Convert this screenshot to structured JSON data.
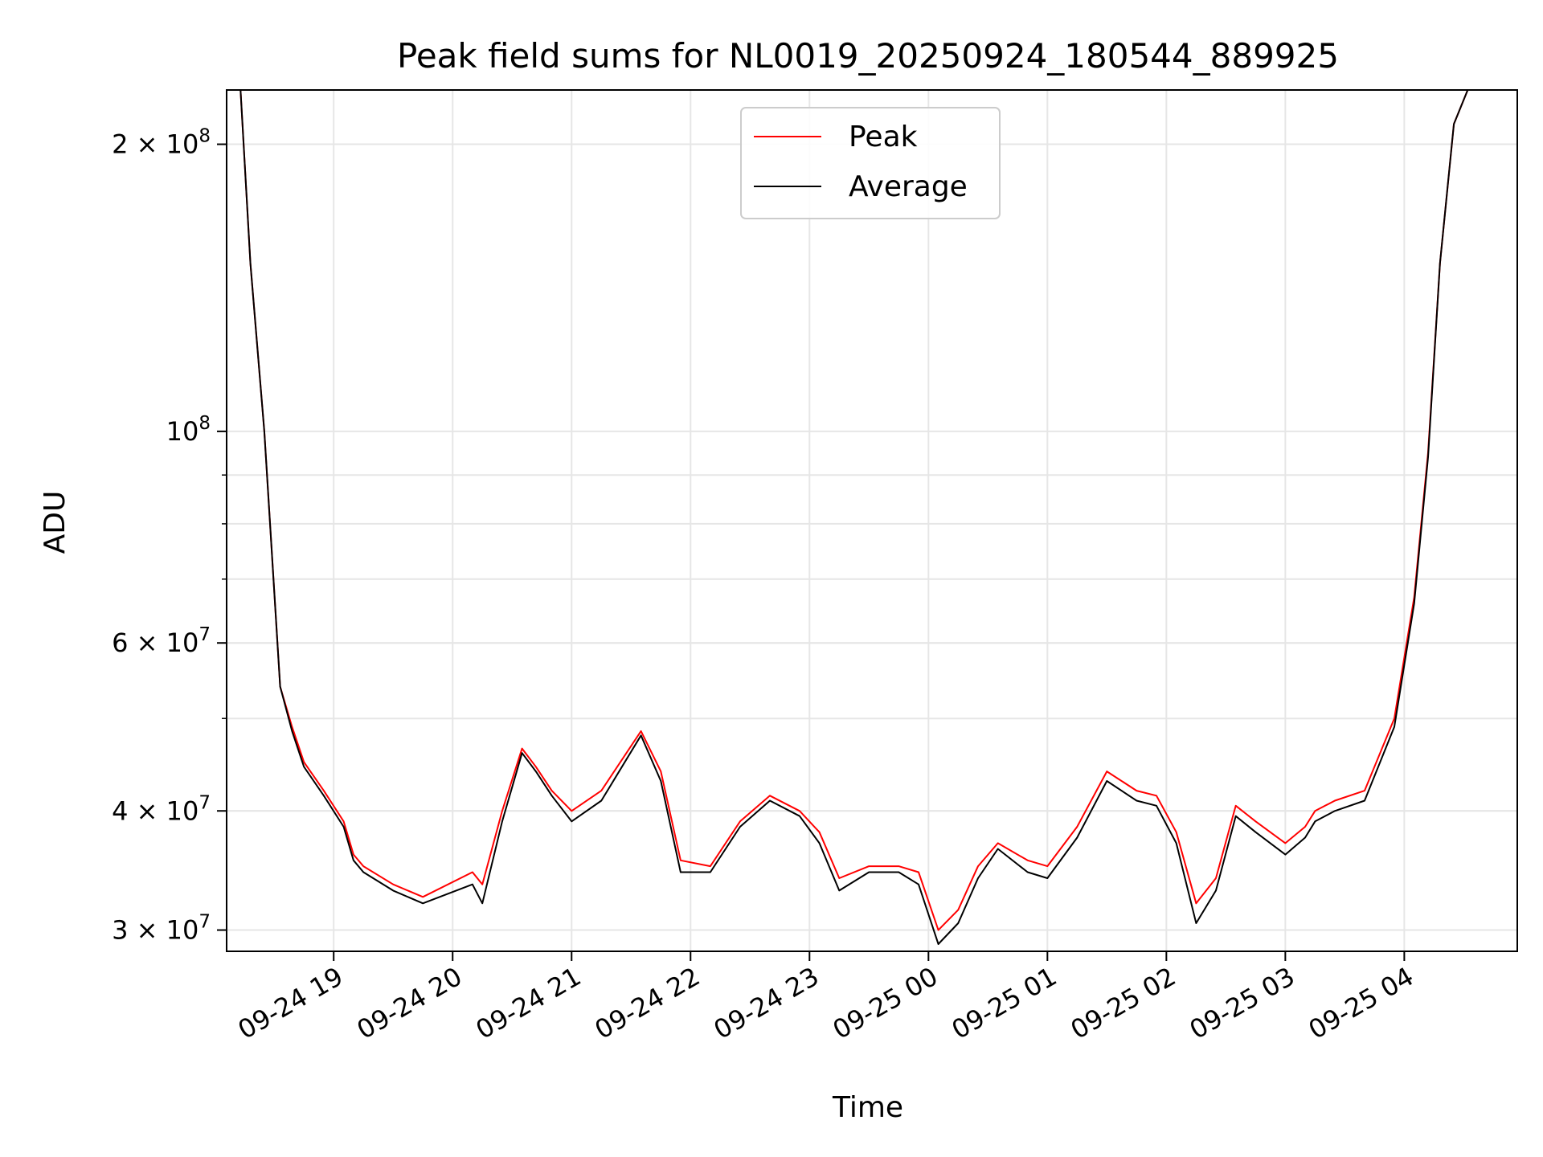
{
  "chart_data": {
    "type": "line",
    "title": "Peak field sums for NL0019_20250924_180544_889925",
    "xlabel": "Time",
    "ylabel": "ADU",
    "yscale": "log",
    "ylim": [
      28500000,
      228000000
    ],
    "xlim": [
      "2025-09-24 18:06",
      "2025-09-25 04:57"
    ],
    "grid": true,
    "legend_position": "top-center",
    "x_ticks": [
      "09-24 19",
      "09-24 20",
      "09-24 21",
      "09-24 22",
      "09-24 23",
      "09-25 00",
      "09-25 01",
      "09-25 02",
      "09-25 03",
      "09-25 04"
    ],
    "y_ticks": [
      {
        "value": 30000000,
        "mantissa": "3",
        "exponent": "7"
      },
      {
        "value": 40000000,
        "mantissa": "4",
        "exponent": "7"
      },
      {
        "value": 60000000,
        "mantissa": "6",
        "exponent": "7"
      },
      {
        "value": 100000000,
        "mantissa": "",
        "exponent": "8"
      },
      {
        "value": 200000000,
        "mantissa": "2",
        "exponent": "8"
      }
    ],
    "series": [
      {
        "name": "Peak",
        "color": "#ff0000",
        "x": [
          "2025-09-24 18:13",
          "2025-09-24 18:18",
          "2025-09-24 18:25",
          "2025-09-24 18:33",
          "2025-09-24 18:39",
          "2025-09-24 18:45",
          "2025-09-24 18:55",
          "2025-09-24 19:05",
          "2025-09-24 19:10",
          "2025-09-24 19:15",
          "2025-09-24 19:30",
          "2025-09-24 19:45",
          "2025-09-24 20:10",
          "2025-09-24 20:15",
          "2025-09-24 20:25",
          "2025-09-24 20:35",
          "2025-09-24 20:42",
          "2025-09-24 20:50",
          "2025-09-24 21:00",
          "2025-09-24 21:15",
          "2025-09-24 21:35",
          "2025-09-24 21:45",
          "2025-09-24 21:55",
          "2025-09-24 22:10",
          "2025-09-24 22:25",
          "2025-09-24 22:40",
          "2025-09-24 22:55",
          "2025-09-24 23:05",
          "2025-09-24 23:15",
          "2025-09-24 23:30",
          "2025-09-24 23:45",
          "2025-09-24 23:55",
          "2025-09-25 00:05",
          "2025-09-25 00:15",
          "2025-09-25 00:25",
          "2025-09-25 00:35",
          "2025-09-25 00:50",
          "2025-09-25 01:00",
          "2025-09-25 01:15",
          "2025-09-25 01:30",
          "2025-09-25 01:45",
          "2025-09-25 01:55",
          "2025-09-25 02:05",
          "2025-09-25 02:15",
          "2025-09-25 02:25",
          "2025-09-25 02:35",
          "2025-09-25 02:45",
          "2025-09-25 03:00",
          "2025-09-25 03:10",
          "2025-09-25 03:15",
          "2025-09-25 03:25",
          "2025-09-25 03:40",
          "2025-09-25 03:55",
          "2025-09-25 04:05",
          "2025-09-25 04:12",
          "2025-09-25 04:18",
          "2025-09-25 04:25",
          "2025-09-25 04:32",
          "2025-09-25 04:38",
          "2025-09-25 04:45",
          "2025-09-25 04:48",
          "2025-09-25 04:50"
        ],
        "y": [
          228000000,
          150000000,
          100000000,
          54000000,
          49000000,
          45000000,
          42000000,
          39000000,
          36000000,
          35000000,
          33500000,
          32500000,
          34500000,
          33500000,
          40000000,
          46500000,
          44500000,
          42000000,
          40000000,
          42000000,
          48500000,
          44000000,
          35500000,
          35000000,
          39000000,
          41500000,
          40000000,
          38000000,
          34000000,
          35000000,
          35000000,
          34500000,
          30000000,
          31500000,
          35000000,
          37000000,
          35500000,
          35000000,
          38500000,
          44000000,
          42000000,
          41500000,
          38000000,
          32000000,
          34000000,
          40500000,
          39000000,
          37000000,
          38500000,
          40000000,
          41000000,
          42000000,
          50000000,
          67000000,
          95000000,
          150000000,
          210000000,
          228000000,
          228000000,
          228000000,
          228000000,
          228000000
        ]
      },
      {
        "name": "Average",
        "color": "#000000",
        "x": [
          "2025-09-24 18:13",
          "2025-09-24 18:18",
          "2025-09-24 18:25",
          "2025-09-24 18:33",
          "2025-09-24 18:39",
          "2025-09-24 18:45",
          "2025-09-24 18:55",
          "2025-09-24 19:05",
          "2025-09-24 19:10",
          "2025-09-24 19:15",
          "2025-09-24 19:30",
          "2025-09-24 19:45",
          "2025-09-24 20:10",
          "2025-09-24 20:15",
          "2025-09-24 20:25",
          "2025-09-24 20:35",
          "2025-09-24 20:42",
          "2025-09-24 20:50",
          "2025-09-24 21:00",
          "2025-09-24 21:15",
          "2025-09-24 21:35",
          "2025-09-24 21:45",
          "2025-09-24 21:55",
          "2025-09-24 22:10",
          "2025-09-24 22:25",
          "2025-09-24 22:40",
          "2025-09-24 22:55",
          "2025-09-24 23:05",
          "2025-09-24 23:15",
          "2025-09-24 23:30",
          "2025-09-24 23:45",
          "2025-09-24 23:55",
          "2025-09-25 00:05",
          "2025-09-25 00:15",
          "2025-09-25 00:25",
          "2025-09-25 00:35",
          "2025-09-25 00:50",
          "2025-09-25 01:00",
          "2025-09-25 01:15",
          "2025-09-25 01:30",
          "2025-09-25 01:45",
          "2025-09-25 01:55",
          "2025-09-25 02:05",
          "2025-09-25 02:15",
          "2025-09-25 02:25",
          "2025-09-25 02:35",
          "2025-09-25 02:45",
          "2025-09-25 03:00",
          "2025-09-25 03:10",
          "2025-09-25 03:15",
          "2025-09-25 03:25",
          "2025-09-25 03:40",
          "2025-09-25 03:55",
          "2025-09-25 04:05",
          "2025-09-25 04:12",
          "2025-09-25 04:18",
          "2025-09-25 04:25",
          "2025-09-25 04:32",
          "2025-09-25 04:38",
          "2025-09-25 04:45",
          "2025-09-25 04:48",
          "2025-09-25 04:50"
        ],
        "y": [
          228000000,
          150000000,
          100000000,
          54000000,
          48500000,
          44500000,
          41500000,
          38500000,
          35500000,
          34500000,
          33000000,
          32000000,
          33500000,
          32000000,
          39000000,
          46000000,
          44000000,
          41500000,
          39000000,
          41000000,
          48000000,
          43000000,
          34500000,
          34500000,
          38500000,
          41000000,
          39500000,
          37000000,
          33000000,
          34500000,
          34500000,
          33500000,
          29000000,
          30500000,
          34000000,
          36500000,
          34500000,
          34000000,
          37500000,
          43000000,
          41000000,
          40500000,
          37000000,
          30500000,
          33000000,
          39500000,
          38000000,
          36000000,
          37500000,
          39000000,
          40000000,
          41000000,
          49000000,
          66000000,
          94000000,
          150000000,
          210000000,
          228000000,
          228000000,
          228000000,
          228000000,
          228000000
        ]
      }
    ]
  }
}
